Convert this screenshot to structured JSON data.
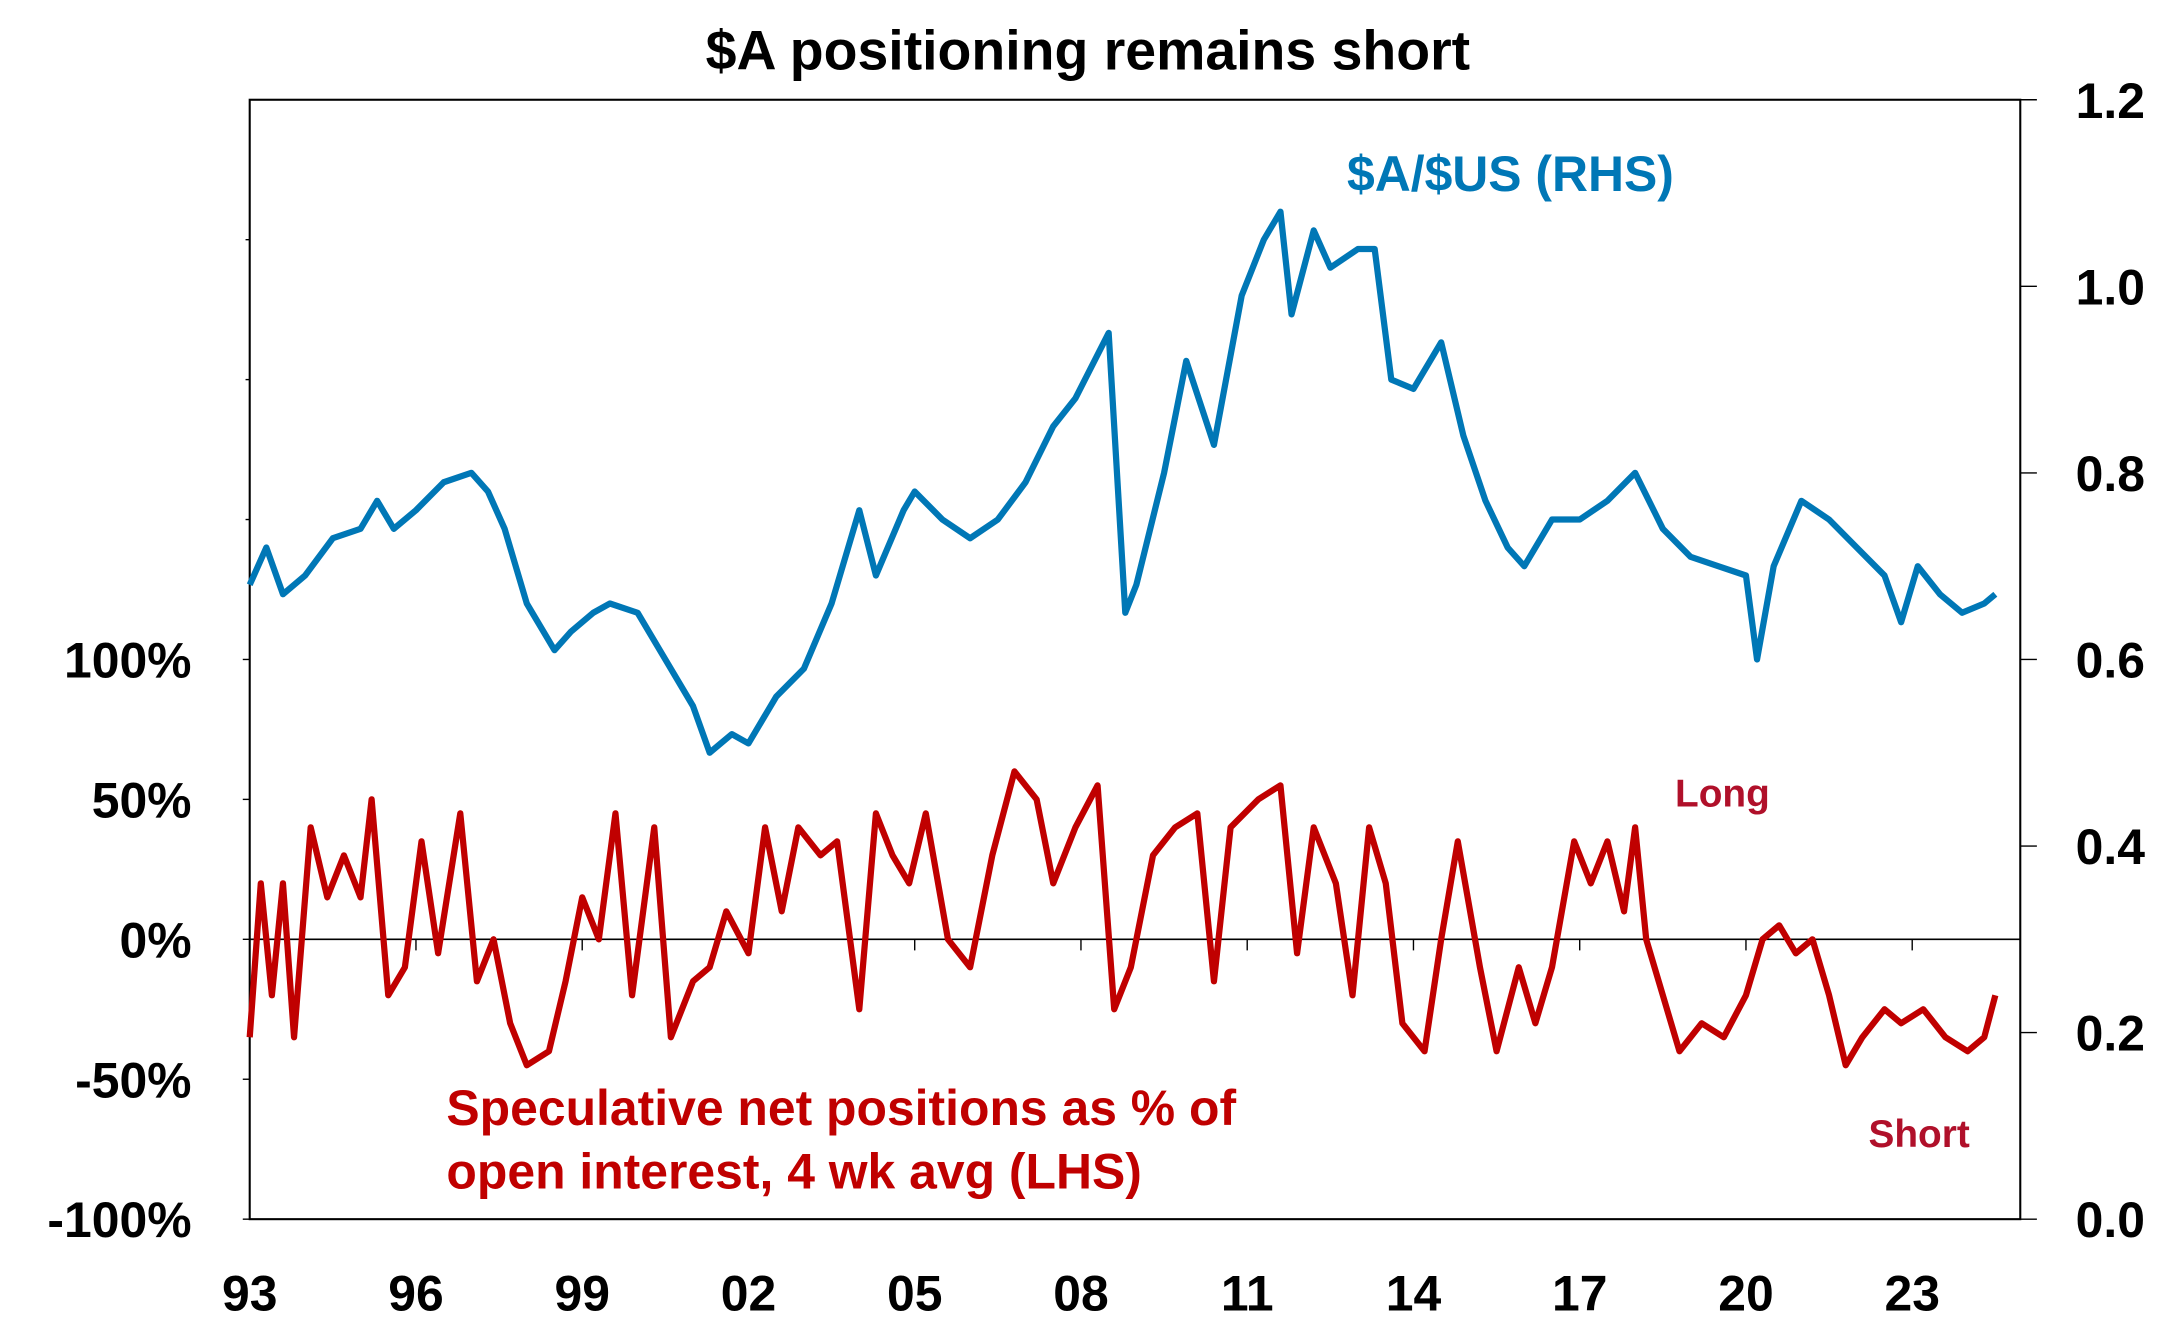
{
  "chart_data": {
    "type": "line",
    "title": "$A positioning remains short",
    "x_tick_labels": [
      "93",
      "96",
      "99",
      "02",
      "05",
      "08",
      "11",
      "14",
      "17",
      "20",
      "23"
    ],
    "x_tick_years": [
      1993,
      1996,
      1999,
      2002,
      2005,
      2008,
      2011,
      2014,
      2017,
      2020,
      2023
    ],
    "xlim": [
      1993,
      2025
    ],
    "left_axis": {
      "ylim": [
        -100,
        300
      ],
      "tick_values": [
        -100,
        -50,
        0,
        50,
        100
      ],
      "tick_labels": [
        "-100%",
        "-50%",
        "0%",
        "50%",
        "100%"
      ]
    },
    "right_axis": {
      "ylim": [
        0,
        1.2
      ],
      "tick_values": [
        0,
        0.2,
        0.4,
        0.6,
        0.8,
        1.0,
        1.2
      ],
      "tick_labels": [
        "0.0",
        "0.2",
        "0.4",
        "0.6",
        "0.8",
        "1.0",
        "1.2"
      ]
    },
    "grid": false,
    "zero_line": true,
    "annotations": {
      "long": "Long",
      "short": "Short"
    },
    "series": [
      {
        "name": "$A/$US (RHS)",
        "axis": "right",
        "color": "#0077B6",
        "x": [
          1993.0,
          1993.3,
          1993.6,
          1994.0,
          1994.5,
          1995.0,
          1995.3,
          1995.6,
          1996.0,
          1996.5,
          1997.0,
          1997.3,
          1997.6,
          1998.0,
          1998.5,
          1998.8,
          1999.2,
          1999.5,
          2000.0,
          2000.5,
          2001.0,
          2001.3,
          2001.7,
          2002.0,
          2002.5,
          2003.0,
          2003.5,
          2004.0,
          2004.3,
          2004.8,
          2005.0,
          2005.5,
          2006.0,
          2006.5,
          2007.0,
          2007.5,
          2007.9,
          2008.5,
          2008.6,
          2008.8,
          2009.0,
          2009.5,
          2009.9,
          2010.4,
          2010.9,
          2011.3,
          2011.6,
          2011.8,
          2012.2,
          2012.5,
          2013.0,
          2013.3,
          2013.6,
          2014.0,
          2014.5,
          2014.9,
          2015.3,
          2015.7,
          2016.0,
          2016.5,
          2017.0,
          2017.5,
          2018.0,
          2018.5,
          2019.0,
          2019.5,
          2020.0,
          2020.2,
          2020.5,
          2021.0,
          2021.5,
          2022.0,
          2022.5,
          2022.8,
          2023.1,
          2023.5,
          2023.9,
          2024.3,
          2024.5
        ],
        "y": [
          0.68,
          0.72,
          0.67,
          0.69,
          0.73,
          0.74,
          0.77,
          0.74,
          0.76,
          0.79,
          0.8,
          0.78,
          0.74,
          0.66,
          0.61,
          0.63,
          0.65,
          0.66,
          0.65,
          0.6,
          0.55,
          0.5,
          0.52,
          0.51,
          0.56,
          0.59,
          0.66,
          0.76,
          0.69,
          0.76,
          0.78,
          0.75,
          0.73,
          0.75,
          0.79,
          0.85,
          0.88,
          0.95,
          0.85,
          0.65,
          0.68,
          0.8,
          0.92,
          0.83,
          0.99,
          1.05,
          1.08,
          0.97,
          1.06,
          1.02,
          1.04,
          1.04,
          0.9,
          0.89,
          0.94,
          0.84,
          0.77,
          0.72,
          0.7,
          0.75,
          0.75,
          0.77,
          0.8,
          0.74,
          0.71,
          0.7,
          0.69,
          0.6,
          0.7,
          0.77,
          0.75,
          0.72,
          0.69,
          0.64,
          0.7,
          0.67,
          0.65,
          0.66,
          0.67
        ]
      },
      {
        "name": "Speculative net positions as % of open interest, 4 wk avg (LHS)",
        "axis": "left",
        "color": "#C00000",
        "x": [
          1993.0,
          1993.2,
          1993.4,
          1993.6,
          1993.8,
          1994.1,
          1994.4,
          1994.7,
          1995.0,
          1995.2,
          1995.5,
          1995.8,
          1996.1,
          1996.4,
          1996.8,
          1997.1,
          1997.4,
          1997.7,
          1998.0,
          1998.4,
          1998.7,
          1999.0,
          1999.3,
          1999.6,
          1999.9,
          2000.3,
          2000.6,
          2001.0,
          2001.3,
          2001.6,
          2002.0,
          2002.3,
          2002.6,
          2002.9,
          2003.3,
          2003.6,
          2004.0,
          2004.3,
          2004.6,
          2004.9,
          2005.2,
          2005.6,
          2006.0,
          2006.4,
          2006.8,
          2007.2,
          2007.5,
          2007.9,
          2008.3,
          2008.6,
          2008.9,
          2009.3,
          2009.7,
          2010.1,
          2010.4,
          2010.7,
          2011.2,
          2011.6,
          2011.9,
          2012.2,
          2012.6,
          2012.9,
          2013.2,
          2013.5,
          2013.8,
          2014.2,
          2014.5,
          2014.8,
          2015.2,
          2015.5,
          2015.9,
          2016.2,
          2016.5,
          2016.9,
          2017.2,
          2017.5,
          2017.8,
          2018.0,
          2018.2,
          2018.5,
          2018.8,
          2019.2,
          2019.6,
          2020.0,
          2020.3,
          2020.6,
          2020.9,
          2021.2,
          2021.5,
          2021.8,
          2022.1,
          2022.5,
          2022.8,
          2023.2,
          2023.6,
          2024.0,
          2024.3,
          2024.5
        ],
        "y": [
          -35,
          20,
          -20,
          20,
          -35,
          40,
          15,
          30,
          15,
          50,
          -20,
          -10,
          35,
          -5,
          45,
          -15,
          0,
          -30,
          -45,
          -40,
          -15,
          15,
          0,
          45,
          -20,
          40,
          -35,
          -15,
          -10,
          10,
          -5,
          40,
          10,
          40,
          30,
          35,
          -25,
          45,
          30,
          20,
          45,
          0,
          -10,
          30,
          60,
          50,
          20,
          40,
          55,
          -25,
          -10,
          30,
          40,
          45,
          -15,
          40,
          50,
          55,
          -5,
          40,
          20,
          -20,
          40,
          20,
          -30,
          -40,
          0,
          35,
          -10,
          -40,
          -10,
          -30,
          -10,
          35,
          20,
          35,
          10,
          40,
          0,
          -20,
          -40,
          -30,
          -35,
          -20,
          0,
          5,
          -5,
          0,
          -20,
          -45,
          -35,
          -25,
          -30,
          -25,
          -35,
          -40,
          -35,
          -20
        ]
      }
    ],
    "series_labels": {
      "aud": "$A/$US (RHS)",
      "spec_line1": "Speculative net positions as % of",
      "spec_line2": "open interest, 4 wk avg (LHS)"
    }
  }
}
